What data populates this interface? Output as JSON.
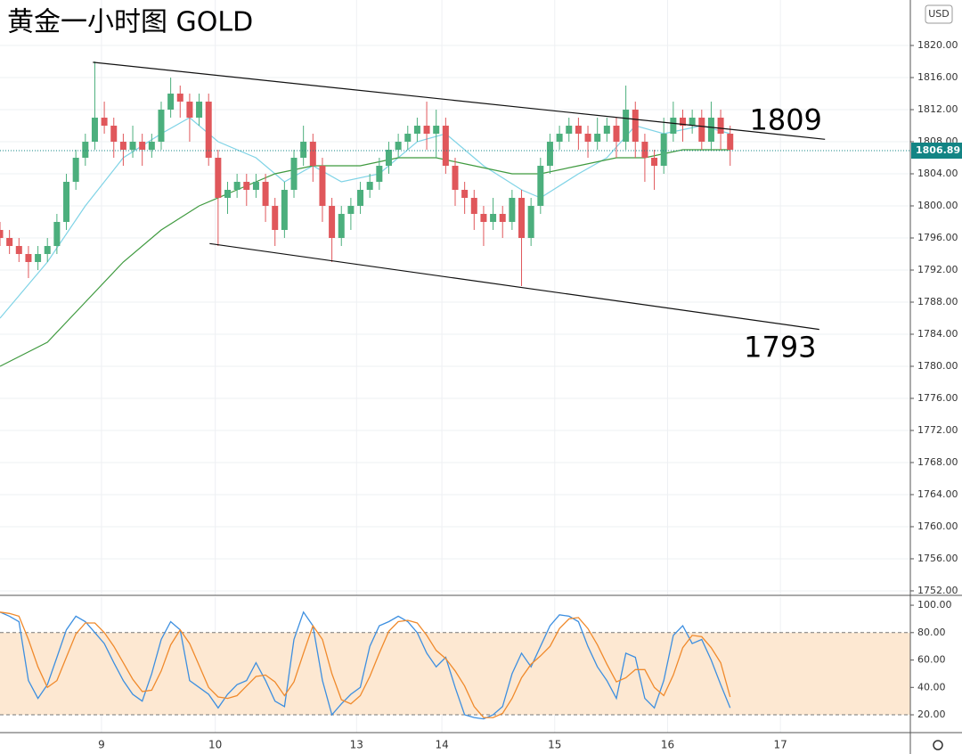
{
  "chart_data": [
    {
      "type": "candlestick",
      "title": "黄金一小时图 GOLD",
      "currency": "USD",
      "last_price": 1806.89,
      "annotations": [
        "1809",
        "1793"
      ],
      "up_color": "#4caf7d",
      "down_color": "#e0575b",
      "grid": true,
      "xlim": [
        0,
        96
      ],
      "ylim": [
        1751.44,
        1825.67
      ],
      "xticks": [
        {
          "value": 10.7,
          "label": "9"
        },
        {
          "value": 22.7,
          "label": "10"
        },
        {
          "value": 37.6,
          "label": "13"
        },
        {
          "value": 46.6,
          "label": "14"
        },
        {
          "value": 58.5,
          "label": "15"
        },
        {
          "value": 70.4,
          "label": "16"
        },
        {
          "value": 82.3,
          "label": "17"
        }
      ],
      "yticks": [
        {
          "value": 1752,
          "label": "1752.00"
        },
        {
          "value": 1756,
          "label": "1756.00"
        },
        {
          "value": 1760,
          "label": "1760.00"
        },
        {
          "value": 1764,
          "label": "1764.00"
        },
        {
          "value": 1768,
          "label": "1768.00"
        },
        {
          "value": 1772,
          "label": "1772.00"
        },
        {
          "value": 1776,
          "label": "1776.00"
        },
        {
          "value": 1780,
          "label": "1780.00"
        },
        {
          "value": 1784,
          "label": "1784.00"
        },
        {
          "value": 1788,
          "label": "1788.00"
        },
        {
          "value": 1792,
          "label": "1792.00"
        },
        {
          "value": 1796,
          "label": "1796.00"
        },
        {
          "value": 1800,
          "label": "1800.00"
        },
        {
          "value": 1804,
          "label": "1804.00"
        },
        {
          "value": 1808,
          "label": "1808.00"
        },
        {
          "value": 1812,
          "label": "1812.00"
        },
        {
          "value": 1816,
          "label": "1816.00"
        },
        {
          "value": 1820,
          "label": "1820.00"
        }
      ],
      "x": [
        0,
        1,
        2,
        3,
        4,
        5,
        6,
        7,
        8,
        9,
        10,
        11,
        12,
        13,
        14,
        15,
        16,
        17,
        18,
        19,
        20,
        21,
        22,
        23,
        24,
        25,
        26,
        27,
        28,
        29,
        30,
        31,
        32,
        33,
        34,
        35,
        36,
        37,
        38,
        39,
        40,
        41,
        42,
        43,
        44,
        45,
        46,
        47,
        48,
        49,
        50,
        51,
        52,
        53,
        54,
        55,
        56,
        57,
        58,
        59,
        60,
        61,
        62,
        63,
        64,
        65,
        66,
        67,
        68,
        69,
        70,
        71,
        72,
        73,
        74,
        75,
        76,
        77
      ],
      "open": [
        1797,
        1796,
        1795,
        1794,
        1793,
        1794,
        1795,
        1798,
        1803,
        1806,
        1808,
        1811,
        1810,
        1808,
        1807,
        1808,
        1807,
        1808,
        1812,
        1814,
        1813,
        1811,
        1813,
        1806,
        1801,
        1802,
        1803,
        1802,
        1803,
        1800,
        1797,
        1802,
        1806,
        1808,
        1805,
        1800,
        1796,
        1799,
        1800,
        1802,
        1803,
        1805,
        1807,
        1808,
        1809,
        1810,
        1809,
        1810,
        1805,
        1802,
        1801,
        1799,
        1798,
        1799,
        1798,
        1801,
        1796,
        1800,
        1805,
        1808,
        1809,
        1810,
        1809,
        1808,
        1809,
        1810,
        1808,
        1812,
        1808,
        1806,
        1805,
        1809,
        1811,
        1810,
        1811,
        1808,
        1811,
        1809
      ],
      "high": [
        1798,
        1797,
        1796,
        1795,
        1795,
        1796,
        1799,
        1804,
        1807,
        1809,
        1818,
        1813,
        1811,
        1809,
        1810,
        1809,
        1809,
        1813,
        1816,
        1815,
        1814,
        1814,
        1814,
        1807,
        1803,
        1804,
        1804,
        1804,
        1804,
        1801,
        1803,
        1807,
        1810,
        1809,
        1806,
        1801,
        1800,
        1801,
        1803,
        1804,
        1806,
        1808,
        1809,
        1810,
        1811,
        1813,
        1812,
        1811,
        1806,
        1803,
        1802,
        1800,
        1801,
        1800,
        1802,
        1802,
        1801,
        1806,
        1809,
        1810,
        1811,
        1811,
        1810,
        1811,
        1811,
        1811,
        1815,
        1813,
        1809,
        1807,
        1811,
        1813,
        1812,
        1812,
        1812,
        1813,
        1812,
        1810
      ],
      "low": [
        1795,
        1794,
        1793,
        1791,
        1792,
        1793,
        1794,
        1797,
        1802,
        1805,
        1807,
        1809,
        1806,
        1805,
        1806,
        1805,
        1806,
        1807,
        1811,
        1811,
        1808,
        1810,
        1805,
        1795,
        1799,
        1801,
        1800,
        1801,
        1798,
        1795,
        1796,
        1801,
        1805,
        1803,
        1798,
        1793,
        1795,
        1797,
        1799,
        1801,
        1802,
        1804,
        1806,
        1807,
        1808,
        1807,
        1806,
        1804,
        1800,
        1799,
        1797,
        1795,
        1797,
        1796,
        1797,
        1790,
        1795,
        1799,
        1804,
        1807,
        1808,
        1807,
        1806,
        1807,
        1808,
        1806,
        1807,
        1806,
        1803,
        1802,
        1804,
        1808,
        1808,
        1809,
        1807,
        1807,
        1807,
        1805
      ],
      "close": [
        1796,
        1795,
        1794,
        1793,
        1794,
        1795,
        1798,
        1803,
        1806,
        1808,
        1811,
        1810,
        1808,
        1807,
        1808,
        1807,
        1808,
        1812,
        1814,
        1813,
        1811,
        1813,
        1806,
        1801,
        1802,
        1803,
        1802,
        1803,
        1800,
        1797,
        1802,
        1806,
        1808,
        1805,
        1800,
        1796,
        1799,
        1800,
        1802,
        1803,
        1805,
        1807,
        1808,
        1809,
        1810,
        1809,
        1810,
        1805,
        1802,
        1801,
        1799,
        1798,
        1799,
        1798,
        1801,
        1796,
        1800,
        1805,
        1808,
        1809,
        1810,
        1809,
        1808,
        1809,
        1810,
        1808,
        1812,
        1808,
        1806,
        1805,
        1809,
        1811,
        1810,
        1811,
        1808,
        1811,
        1809,
        1807
      ],
      "overlays": [
        {
          "color": "#7fd3e6",
          "x": [
            0,
            5,
            9,
            13,
            17,
            20,
            23,
            27,
            30,
            33,
            36,
            40,
            44,
            47,
            51,
            55,
            57,
            61,
            64,
            67,
            70,
            74,
            77
          ],
          "values": [
            1786,
            1793,
            1800,
            1806,
            1809,
            1811,
            1808,
            1806,
            1803,
            1805,
            1803,
            1804,
            1808,
            1809,
            1805,
            1802,
            1801,
            1804,
            1806,
            1810,
            1809,
            1810,
            1809
          ]
        },
        {
          "color": "#3f9a3f",
          "x": [
            0,
            5,
            9,
            13,
            17,
            21,
            25,
            29,
            33,
            38,
            42,
            46,
            50,
            54,
            57,
            61,
            65,
            68,
            72,
            77
          ],
          "values": [
            1780,
            1783,
            1788,
            1793,
            1797,
            1800,
            1802,
            1804,
            1805,
            1805,
            1806,
            1806,
            1805,
            1804,
            1804,
            1805,
            1806,
            1806,
            1807,
            1807
          ]
        }
      ],
      "lines": [
        {
          "x": [
            9.8,
            87
          ],
          "values": [
            1817.9,
            1808.3
          ]
        },
        {
          "x": [
            22.1,
            86.4
          ],
          "values": [
            1795.3,
            1784.6
          ]
        }
      ]
    },
    {
      "type": "line",
      "xlim": [
        0,
        96
      ],
      "ylim": [
        7,
        105.9
      ],
      "band": [
        20,
        80
      ],
      "band_color": "#fde8d2",
      "yticks": [
        {
          "value": 20,
          "label": "20.00"
        },
        {
          "value": 40,
          "label": "40.00"
        },
        {
          "value": 60,
          "label": "60.00"
        },
        {
          "value": 80,
          "label": "80.00"
        },
        {
          "value": 100,
          "label": "100.00"
        }
      ],
      "x": [
        0,
        1,
        2,
        3,
        4,
        5,
        6,
        7,
        8,
        9,
        10,
        11,
        12,
        13,
        14,
        15,
        16,
        17,
        18,
        19,
        20,
        21,
        22,
        23,
        24,
        25,
        26,
        27,
        28,
        29,
        30,
        31,
        32,
        33,
        34,
        35,
        36,
        37,
        38,
        39,
        40,
        41,
        42,
        43,
        44,
        45,
        46,
        47,
        48,
        49,
        50,
        51,
        52,
        53,
        54,
        55,
        56,
        57,
        58,
        59,
        60,
        61,
        62,
        63,
        64,
        65,
        66,
        67,
        68,
        69,
        70,
        71,
        72,
        73,
        74,
        75,
        76,
        77
      ],
      "series": [
        {
          "color": "#3d8fe0",
          "values": [
            95,
            92,
            88,
            45,
            32,
            42,
            62,
            82,
            92,
            88,
            80,
            72,
            58,
            45,
            35,
            30,
            50,
            75,
            88,
            82,
            45,
            40,
            35,
            25,
            35,
            42,
            45,
            58,
            45,
            30,
            26,
            75,
            95,
            85,
            45,
            20,
            28,
            35,
            40,
            70,
            85,
            88,
            92,
            88,
            80,
            65,
            55,
            62,
            40,
            20,
            18,
            17,
            20,
            26,
            50,
            65,
            55,
            70,
            85,
            93,
            92,
            88,
            70,
            55,
            45,
            32,
            65,
            62,
            32,
            25,
            45,
            78,
            85,
            72,
            75,
            60,
            42,
            25
          ]
        },
        {
          "color": "#f08a2c",
          "values": [
            95,
            94,
            92,
            75,
            55,
            40,
            45,
            62,
            79,
            87,
            87,
            80,
            70,
            58,
            46,
            37,
            38,
            52,
            71,
            82,
            72,
            56,
            40,
            33,
            32,
            34,
            41,
            48,
            49,
            44,
            34,
            44,
            65,
            85,
            75,
            50,
            31,
            28,
            34,
            48,
            65,
            81,
            88,
            89,
            87,
            78,
            67,
            61,
            52,
            41,
            26,
            18,
            18,
            21,
            32,
            47,
            57,
            63,
            70,
            83,
            90,
            91,
            83,
            71,
            57,
            44,
            47,
            53,
            53,
            40,
            34,
            49,
            69,
            78,
            77,
            69,
            58,
            33
          ]
        }
      ]
    }
  ]
}
